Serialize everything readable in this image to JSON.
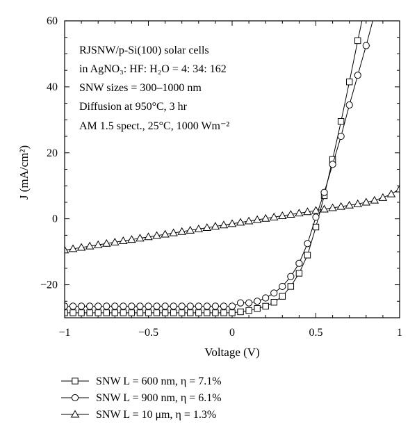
{
  "chart_data": {
    "type": "line",
    "xlabel": "Voltage (V)",
    "ylabel": "J (mA/cm²)",
    "xlim": [
      -1,
      1
    ],
    "ylim": [
      -30,
      60
    ],
    "x_ticks": [
      "−1",
      "−0.5",
      "0",
      "0.5",
      "1"
    ],
    "y_ticks": [
      "−20",
      "0",
      "20",
      "40",
      "60"
    ],
    "x_tick_values": [
      -1,
      -0.5,
      0,
      0.5,
      1
    ],
    "y_tick_values": [
      -20,
      0,
      20,
      40,
      60
    ],
    "annotations": [
      "RJSNW/p-Si(100) solar cells",
      "in AgNO₃: HF: H₂O = 4: 34: 162",
      "SNW sizes = 300–1000 nm",
      "Diffusion at 950°C, 3 hr",
      "AM 1.5 spect., 25°C, 1000 Wm⁻²"
    ],
    "legend_position": "bottom",
    "series": [
      {
        "name": "SNW L = 600 nm, η = 7.1%",
        "marker": "square",
        "x": [
          -1,
          -0.95,
          -0.9,
          -0.85,
          -0.8,
          -0.75,
          -0.7,
          -0.65,
          -0.6,
          -0.55,
          -0.5,
          -0.45,
          -0.4,
          -0.35,
          -0.3,
          -0.25,
          -0.2,
          -0.15,
          -0.1,
          -0.05,
          0,
          0.05,
          0.1,
          0.15,
          0.2,
          0.25,
          0.3,
          0.35,
          0.4,
          0.45,
          0.5,
          0.55,
          0.6,
          0.65,
          0.7,
          0.75,
          0.8
        ],
        "y": [
          -28.5,
          -28.5,
          -28.5,
          -28.5,
          -28.5,
          -28.5,
          -28.5,
          -28.5,
          -28.5,
          -28.5,
          -28.5,
          -28.5,
          -28.5,
          -28.5,
          -28.5,
          -28.5,
          -28.5,
          -28.5,
          -28.5,
          -28.5,
          -28.5,
          -28.2,
          -27.8,
          -27.2,
          -26.5,
          -25.3,
          -23.5,
          -20.5,
          -16.5,
          -11,
          -2.5,
          7,
          18,
          29.5,
          41.5,
          54,
          66
        ]
      },
      {
        "name": "SNW L = 900 nm, η = 6.1%",
        "marker": "circle",
        "x": [
          -1,
          -0.95,
          -0.9,
          -0.85,
          -0.8,
          -0.75,
          -0.7,
          -0.65,
          -0.6,
          -0.55,
          -0.5,
          -0.45,
          -0.4,
          -0.35,
          -0.3,
          -0.25,
          -0.2,
          -0.15,
          -0.1,
          -0.05,
          0,
          0.05,
          0.1,
          0.15,
          0.2,
          0.25,
          0.3,
          0.35,
          0.4,
          0.45,
          0.5,
          0.55,
          0.6,
          0.65,
          0.7,
          0.75,
          0.8,
          0.85
        ],
        "y": [
          -26.5,
          -26.5,
          -26.5,
          -26.5,
          -26.5,
          -26.5,
          -26.5,
          -26.5,
          -26.5,
          -26.5,
          -26.5,
          -26.5,
          -26.5,
          -26.5,
          -26.5,
          -26.5,
          -26.5,
          -26.5,
          -26.5,
          -26.5,
          -26.5,
          -25.5,
          -25.5,
          -25,
          -24,
          -22.5,
          -20.5,
          -17.5,
          -13.5,
          -7.5,
          0.5,
          8,
          16.5,
          25,
          34.5,
          43.5,
          52.5,
          62
        ]
      },
      {
        "name": "SNW L = 10 μm, η = 1.3%",
        "marker": "triangle",
        "x": [
          -1,
          -0.95,
          -0.9,
          -0.85,
          -0.8,
          -0.75,
          -0.7,
          -0.65,
          -0.6,
          -0.55,
          -0.5,
          -0.45,
          -0.4,
          -0.35,
          -0.3,
          -0.25,
          -0.2,
          -0.15,
          -0.1,
          -0.05,
          0,
          0.05,
          0.1,
          0.15,
          0.2,
          0.25,
          0.3,
          0.35,
          0.4,
          0.45,
          0.5,
          0.55,
          0.6,
          0.65,
          0.7,
          0.75,
          0.8,
          0.85,
          0.9,
          0.95,
          1
        ],
        "y": [
          -9.5,
          -9.1,
          -8.7,
          -8.3,
          -7.9,
          -7.5,
          -7.1,
          -6.7,
          -6.3,
          -5.9,
          -5.5,
          -5.1,
          -4.7,
          -4.3,
          -3.9,
          -3.5,
          -3.1,
          -2.7,
          -2.3,
          -1.9,
          -1.5,
          -1.1,
          -0.7,
          -0.3,
          0.1,
          0.5,
          0.9,
          1.3,
          1.7,
          2.1,
          2.5,
          2.9,
          3.3,
          3.7,
          4.1,
          4.5,
          5.0,
          5.6,
          6.4,
          7.5,
          9
        ]
      }
    ]
  }
}
